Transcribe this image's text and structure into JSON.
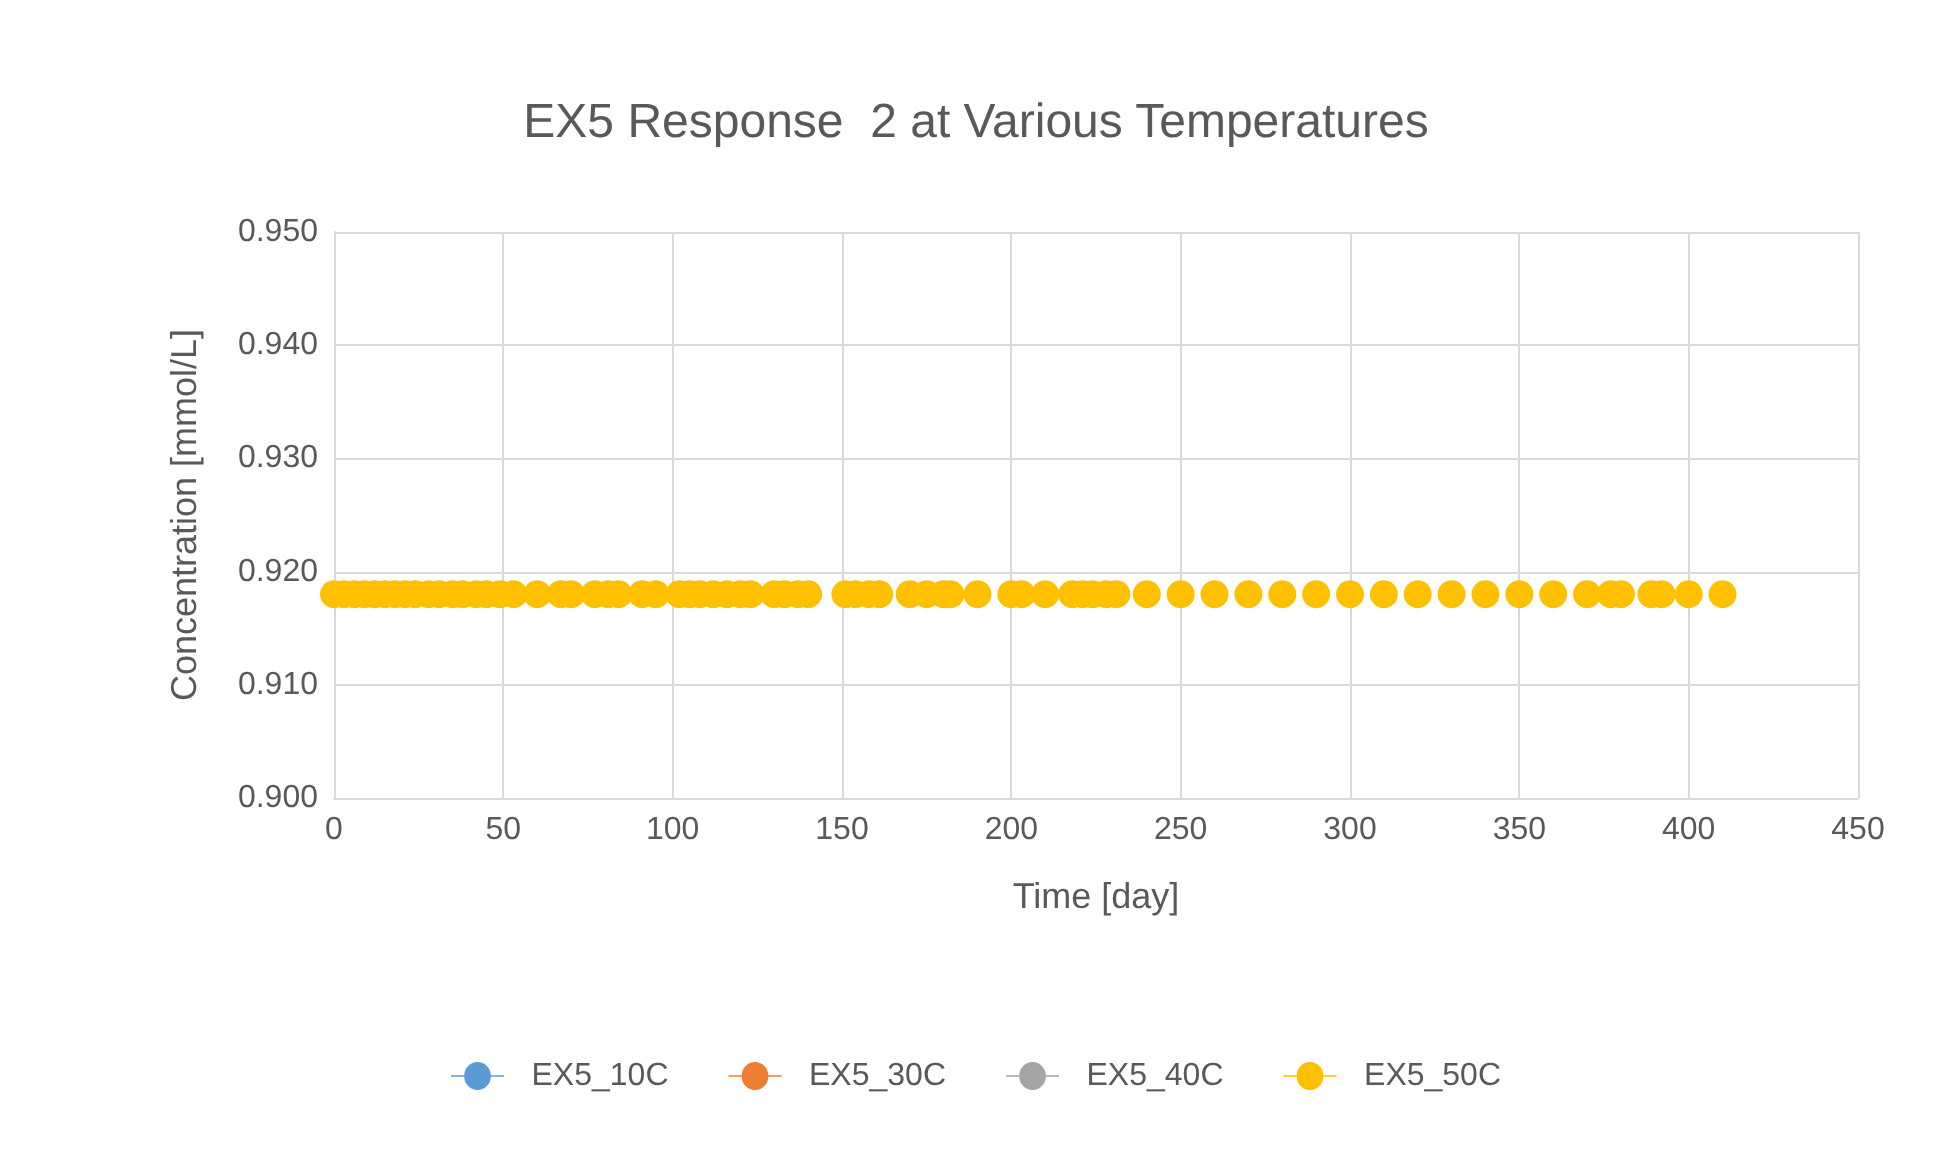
{
  "chart_data": {
    "type": "scatter",
    "title": "EX5 Response  2 at Various Temperatures",
    "xlabel": "Time [day]",
    "ylabel": "Concentration [mmol/L]",
    "x": [
      0,
      3,
      6,
      9,
      12,
      15,
      18,
      21,
      24,
      28,
      31,
      35,
      38,
      42,
      45,
      49,
      53,
      60,
      67,
      70,
      77,
      81,
      84,
      91,
      95,
      102,
      105,
      108,
      112,
      116,
      120,
      123,
      130,
      133,
      137,
      140,
      151,
      154,
      158,
      161,
      170,
      175,
      180,
      182,
      190,
      200,
      203,
      210,
      218,
      221,
      224,
      228,
      231,
      240,
      250,
      260,
      270,
      280,
      290,
      300,
      310,
      320,
      330,
      340,
      350,
      360,
      370,
      377,
      380,
      389,
      392,
      400,
      410
    ],
    "series": [
      {
        "name": "EX5_10C",
        "color": "#5b9bd5",
        "values": [
          null,
          null,
          null,
          null,
          null,
          null,
          null,
          null,
          null,
          null,
          null,
          null,
          null,
          null,
          null,
          null,
          null,
          null,
          null,
          null,
          null,
          null,
          null,
          null,
          null,
          null,
          null,
          null,
          null,
          null,
          null,
          null,
          null,
          null,
          null,
          null,
          null,
          null,
          null,
          null,
          null,
          null,
          null,
          null,
          null,
          null,
          null,
          null,
          null,
          null,
          null,
          null,
          null,
          null,
          null,
          null,
          null,
          null,
          null,
          null,
          null,
          null,
          null,
          null,
          null,
          null,
          null,
          null,
          null,
          null,
          null,
          null,
          null
        ]
      },
      {
        "name": "EX5_30C",
        "color": "#ed7d31",
        "values": [
          null,
          null,
          null,
          null,
          null,
          null,
          null,
          null,
          null,
          null,
          null,
          null,
          null,
          null,
          null,
          null,
          null,
          null,
          null,
          null,
          null,
          null,
          null,
          null,
          null,
          null,
          null,
          null,
          null,
          null,
          null,
          null,
          null,
          null,
          null,
          null,
          null,
          null,
          null,
          null,
          null,
          null,
          null,
          null,
          null,
          null,
          null,
          null,
          null,
          null,
          null,
          null,
          null,
          null,
          null,
          null,
          null,
          null,
          null,
          null,
          null,
          null,
          null,
          null,
          null,
          null,
          null,
          null,
          null,
          null,
          null,
          null,
          null
        ]
      },
      {
        "name": "EX5_40C",
        "color": "#a5a5a5",
        "values": [
          null,
          null,
          null,
          null,
          null,
          null,
          null,
          null,
          null,
          null,
          null,
          null,
          null,
          null,
          null,
          null,
          null,
          null,
          null,
          null,
          null,
          null,
          null,
          null,
          null,
          null,
          null,
          null,
          null,
          null,
          null,
          null,
          null,
          null,
          null,
          null,
          null,
          null,
          null,
          null,
          null,
          null,
          null,
          null,
          null,
          null,
          null,
          null,
          null,
          null,
          null,
          null,
          null,
          null,
          null,
          null,
          null,
          null,
          null,
          null,
          null,
          null,
          null,
          null,
          null,
          null,
          null,
          null,
          null,
          null,
          null,
          null,
          null
        ]
      },
      {
        "name": "EX5_50C",
        "color": "#ffc000",
        "values": [
          0.918,
          0.918,
          0.918,
          0.918,
          0.918,
          0.918,
          0.918,
          0.918,
          0.918,
          0.918,
          0.918,
          0.918,
          0.918,
          0.918,
          0.918,
          0.918,
          0.918,
          0.918,
          0.918,
          0.918,
          0.918,
          0.918,
          0.918,
          0.918,
          0.918,
          0.918,
          0.918,
          0.918,
          0.918,
          0.918,
          0.918,
          0.918,
          0.918,
          0.918,
          0.918,
          0.918,
          0.918,
          0.918,
          0.918,
          0.918,
          0.918,
          0.918,
          0.918,
          0.918,
          0.918,
          0.918,
          0.918,
          0.918,
          0.918,
          0.918,
          0.918,
          0.918,
          0.918,
          0.918,
          0.918,
          0.918,
          0.918,
          0.918,
          0.918,
          0.918,
          0.918,
          0.918,
          0.918,
          0.918,
          0.918,
          0.918,
          0.918,
          0.918,
          0.918,
          0.918,
          0.918,
          0.918,
          0.918
        ]
      }
    ],
    "xlim": [
      0,
      450
    ],
    "xticks": [
      0,
      50,
      100,
      150,
      200,
      250,
      300,
      350,
      400,
      450
    ],
    "ylim": [
      0.9,
      0.95
    ],
    "yticks": [
      {
        "value": 0.9,
        "label": "0.900"
      },
      {
        "value": 0.91,
        "label": "0.910"
      },
      {
        "value": 0.92,
        "label": "0.920"
      },
      {
        "value": 0.93,
        "label": "0.930"
      },
      {
        "value": 0.94,
        "label": "0.940"
      },
      {
        "value": 0.95,
        "label": "0.950"
      }
    ],
    "grid": true,
    "legend": "bottom",
    "marker": "circle"
  }
}
